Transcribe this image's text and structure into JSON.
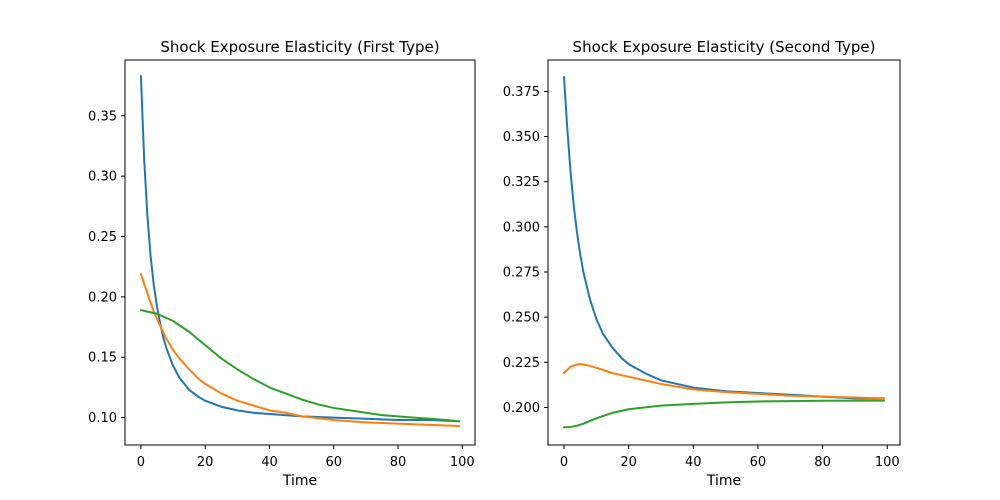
{
  "chart_data": [
    {
      "type": "line",
      "title": "Shock Exposure Elasticity (First Type)",
      "xlabel": "Time",
      "ylabel": "",
      "xlim": [
        -4.95,
        103.95
      ],
      "ylim": [
        0.0773,
        0.3962
      ],
      "xticks": [
        0,
        20,
        40,
        60,
        80,
        100
      ],
      "yticks": [
        0.1,
        0.15,
        0.2,
        0.25,
        0.3,
        0.35
      ],
      "ytick_labels": [
        "0.10",
        "0.15",
        "0.20",
        "0.25",
        "0.30",
        "0.35"
      ],
      "grid": false,
      "series": [
        {
          "color": "#1f77b4",
          "x": [
            0,
            1,
            2,
            3,
            4,
            5,
            6,
            7,
            8,
            10,
            12,
            15,
            18,
            20,
            25,
            30,
            35,
            40,
            50,
            60,
            70,
            80,
            90,
            99
          ],
          "y": [
            0.383,
            0.315,
            0.268,
            0.234,
            0.21,
            0.192,
            0.178,
            0.166,
            0.157,
            0.143,
            0.133,
            0.123,
            0.117,
            0.114,
            0.109,
            0.106,
            0.104,
            0.103,
            0.101,
            0.1,
            0.099,
            0.098,
            0.098,
            0.097
          ]
        },
        {
          "color": "#ff7f0e",
          "x": [
            0,
            2,
            4,
            6,
            8,
            10,
            12,
            15,
            18,
            20,
            25,
            30,
            35,
            40,
            45,
            50,
            60,
            70,
            80,
            90,
            99
          ],
          "y": [
            0.219,
            0.203,
            0.188,
            0.176,
            0.165,
            0.156,
            0.149,
            0.14,
            0.132,
            0.128,
            0.12,
            0.114,
            0.11,
            0.106,
            0.104,
            0.101,
            0.098,
            0.096,
            0.095,
            0.094,
            0.093
          ]
        },
        {
          "color": "#2ca02c",
          "x": [
            0,
            5,
            10,
            15,
            20,
            25,
            30,
            35,
            40,
            45,
            50,
            55,
            60,
            65,
            70,
            75,
            80,
            85,
            90,
            95,
            99
          ],
          "y": [
            0.189,
            0.186,
            0.18,
            0.171,
            0.16,
            0.149,
            0.14,
            0.132,
            0.125,
            0.12,
            0.115,
            0.111,
            0.108,
            0.106,
            0.104,
            0.102,
            0.101,
            0.1,
            0.099,
            0.098,
            0.097
          ]
        }
      ]
    },
    {
      "type": "line",
      "title": "Shock Exposure Elasticity (Second Type)",
      "xlabel": "Time",
      "ylabel": "",
      "xlim": [
        -4.95,
        103.95
      ],
      "ylim": [
        0.1792,
        0.3924
      ],
      "xticks": [
        0,
        20,
        40,
        60,
        80,
        100
      ],
      "yticks": [
        0.2,
        0.225,
        0.25,
        0.275,
        0.3,
        0.325,
        0.35,
        0.375
      ],
      "ytick_labels": [
        "0.200",
        "0.225",
        "0.250",
        "0.275",
        "0.300",
        "0.325",
        "0.350",
        "0.375"
      ],
      "grid": false,
      "series": [
        {
          "color": "#1f77b4",
          "x": [
            0,
            1,
            2,
            3,
            4,
            5,
            6,
            8,
            10,
            12,
            15,
            18,
            20,
            25,
            30,
            35,
            40,
            50,
            60,
            70,
            80,
            90,
            99
          ],
          "y": [
            0.383,
            0.355,
            0.331,
            0.312,
            0.297,
            0.285,
            0.275,
            0.26,
            0.249,
            0.241,
            0.233,
            0.227,
            0.224,
            0.219,
            0.215,
            0.213,
            0.211,
            0.209,
            0.208,
            0.207,
            0.206,
            0.205,
            0.205
          ]
        },
        {
          "color": "#ff7f0e",
          "x": [
            0,
            2,
            4,
            5,
            6,
            8,
            10,
            15,
            20,
            30,
            40,
            50,
            60,
            70,
            80,
            90,
            99
          ],
          "y": [
            0.219,
            0.2225,
            0.2238,
            0.224,
            0.2238,
            0.223,
            0.222,
            0.219,
            0.217,
            0.213,
            0.21,
            0.2085,
            0.2075,
            0.2065,
            0.206,
            0.2055,
            0.205
          ]
        },
        {
          "color": "#2ca02c",
          "x": [
            0,
            2,
            4,
            6,
            8,
            10,
            15,
            20,
            25,
            30,
            40,
            50,
            60,
            70,
            80,
            90,
            99
          ],
          "y": [
            0.189,
            0.1892,
            0.1899,
            0.191,
            0.1925,
            0.194,
            0.197,
            0.199,
            0.2,
            0.201,
            0.202,
            0.2028,
            0.2033,
            0.2035,
            0.2037,
            0.2038,
            0.2038
          ]
        }
      ]
    }
  ]
}
